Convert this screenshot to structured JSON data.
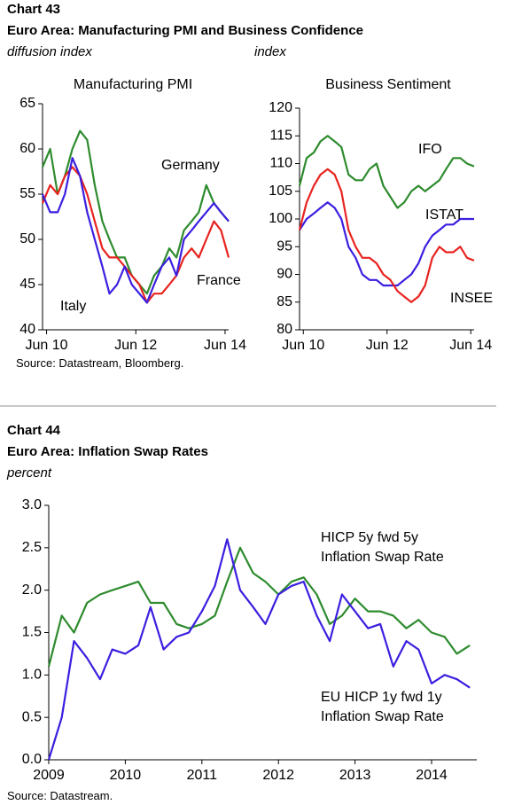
{
  "chart_data": [
    {
      "type": "line",
      "chart_number": "Chart 43",
      "title": "Euro Area: Manufacturing PMI and Business Confidence",
      "ylabel": "diffusion index",
      "panel_title": "Manufacturing PMI",
      "source": "Source: Datastream, Bloomberg.",
      "x": [
        2010.33,
        2010.5,
        2010.67,
        2010.83,
        2011.0,
        2011.17,
        2011.33,
        2011.5,
        2011.67,
        2011.83,
        2012.0,
        2012.17,
        2012.33,
        2012.5,
        2012.67,
        2012.83,
        2013.0,
        2013.17,
        2013.33,
        2013.5,
        2013.67,
        2013.83,
        2014.0,
        2014.17,
        2014.33,
        2014.5
      ],
      "series": [
        {
          "name": "Germany",
          "color": "#2e8b2e",
          "values": [
            58,
            60,
            55,
            57,
            60,
            62,
            61,
            56,
            52,
            50,
            48,
            48,
            46,
            45,
            44,
            46,
            47,
            49,
            48,
            51,
            52,
            53,
            56,
            54,
            53,
            52
          ]
        },
        {
          "name": "France",
          "color": "#e8231f",
          "values": [
            54,
            56,
            55,
            57,
            58,
            57,
            55,
            52,
            49,
            48,
            48,
            47,
            46,
            45,
            43,
            44,
            44,
            45,
            46,
            48,
            49,
            48,
            50,
            52,
            51,
            48
          ]
        },
        {
          "name": "Italy",
          "color": "#3a1fe0",
          "values": [
            55,
            53,
            53,
            55,
            59,
            57,
            53,
            50,
            47,
            44,
            45,
            47,
            45,
            44,
            43,
            45,
            47,
            48,
            46,
            50,
            51,
            52,
            53,
            54,
            53,
            52
          ]
        }
      ],
      "xlim": [
        2010.33,
        2014.5
      ],
      "xticks": [
        {
          "value": 2010.42,
          "label": "Jun 10"
        },
        {
          "value": 2012.42,
          "label": "Jun 12"
        },
        {
          "value": 2014.42,
          "label": "Jun 14"
        }
      ],
      "ylim": [
        40,
        65
      ],
      "yticks": [
        40,
        45,
        50,
        55,
        60,
        65
      ]
    },
    {
      "type": "line",
      "ylabel": "index",
      "panel_title": "Business Sentiment",
      "x": [
        2010.33,
        2010.5,
        2010.67,
        2010.83,
        2011.0,
        2011.17,
        2011.33,
        2011.5,
        2011.67,
        2011.83,
        2012.0,
        2012.17,
        2012.33,
        2012.5,
        2012.67,
        2012.83,
        2013.0,
        2013.17,
        2013.33,
        2013.5,
        2013.67,
        2013.83,
        2014.0,
        2014.17,
        2014.33,
        2014.5
      ],
      "series": [
        {
          "name": "IFO",
          "color": "#2e8b2e",
          "values": [
            106,
            111,
            112,
            114,
            115,
            114,
            113,
            108,
            107,
            107,
            109,
            110,
            106,
            104,
            102,
            103,
            105,
            106,
            105,
            106,
            107,
            109,
            111,
            111,
            110,
            109.5
          ]
        },
        {
          "name": "ISTAT",
          "color": "#3a1fe0",
          "values": [
            98,
            100,
            101,
            102,
            103,
            102,
            100,
            95,
            93,
            90,
            89,
            89,
            88,
            88,
            88,
            89,
            90,
            92,
            95,
            97,
            98,
            99,
            99,
            100,
            100,
            100
          ]
        },
        {
          "name": "INSEE",
          "color": "#e8231f",
          "values": [
            98,
            103,
            106,
            108,
            109,
            108,
            105,
            98,
            95,
            93,
            93,
            92,
            90,
            89,
            87,
            86,
            85,
            86,
            88,
            93,
            95,
            94,
            94,
            95,
            93,
            92.5
          ]
        }
      ],
      "xlim": [
        2010.33,
        2014.5
      ],
      "xticks": [
        {
          "value": 2010.42,
          "label": "Jun 10"
        },
        {
          "value": 2012.42,
          "label": "Jun 12"
        },
        {
          "value": 2014.42,
          "label": "Jun 14"
        }
      ],
      "ylim": [
        80,
        120
      ],
      "yticks": [
        80,
        85,
        90,
        95,
        100,
        105,
        110,
        115,
        120
      ]
    },
    {
      "type": "line",
      "chart_number": "Chart 44",
      "title": "Euro Area: Inflation Swap Rates",
      "ylabel": "percent",
      "source": "Source: Datastream.",
      "x": [
        2009.0,
        2009.17,
        2009.33,
        2009.5,
        2009.67,
        2009.83,
        2010.0,
        2010.17,
        2010.33,
        2010.5,
        2010.67,
        2010.83,
        2011.0,
        2011.17,
        2011.33,
        2011.5,
        2011.67,
        2011.83,
        2012.0,
        2012.17,
        2012.33,
        2012.5,
        2012.67,
        2012.83,
        2013.0,
        2013.17,
        2013.33,
        2013.5,
        2013.67,
        2013.83,
        2014.0,
        2014.17,
        2014.33,
        2014.5
      ],
      "series": [
        {
          "name": "HICP 5y fwd 5y Inflation Swap Rate",
          "color": "#2e8b2e",
          "values": [
            1.1,
            1.7,
            1.5,
            1.85,
            1.95,
            2.0,
            2.05,
            2.1,
            1.85,
            1.85,
            1.6,
            1.55,
            1.6,
            1.7,
            2.1,
            2.5,
            2.2,
            2.1,
            1.95,
            2.1,
            2.15,
            1.95,
            1.6,
            1.7,
            1.9,
            1.75,
            1.75,
            1.7,
            1.55,
            1.65,
            1.5,
            1.45,
            1.25,
            1.35
          ]
        },
        {
          "name": "EU HICP 1y fwd 1y Inflation Swap Rate",
          "color": "#3a1fe0",
          "values": [
            0.0,
            0.5,
            1.4,
            1.2,
            0.95,
            1.3,
            1.25,
            1.35,
            1.8,
            1.3,
            1.45,
            1.5,
            1.75,
            2.05,
            2.6,
            2.0,
            1.8,
            1.6,
            1.95,
            2.05,
            2.1,
            1.7,
            1.4,
            1.95,
            1.75,
            1.55,
            1.6,
            1.1,
            1.4,
            1.3,
            0.9,
            1.0,
            0.95,
            0.85
          ]
        }
      ],
      "xlim": [
        2009,
        2014.59
      ],
      "xticks": [
        2009,
        2010,
        2011,
        2012,
        2013,
        2014
      ],
      "ylim": [
        0,
        3
      ],
      "yticks": [
        {
          "value": 0,
          "label": "0.0"
        },
        {
          "value": 0.5,
          "label": "0.5"
        },
        {
          "value": 1,
          "label": "1.0"
        },
        {
          "value": 1.5,
          "label": "1.5"
        },
        {
          "value": 2,
          "label": "2.0"
        },
        {
          "value": 2.5,
          "label": "2.5"
        },
        {
          "value": 3,
          "label": "3.0"
        }
      ]
    }
  ]
}
